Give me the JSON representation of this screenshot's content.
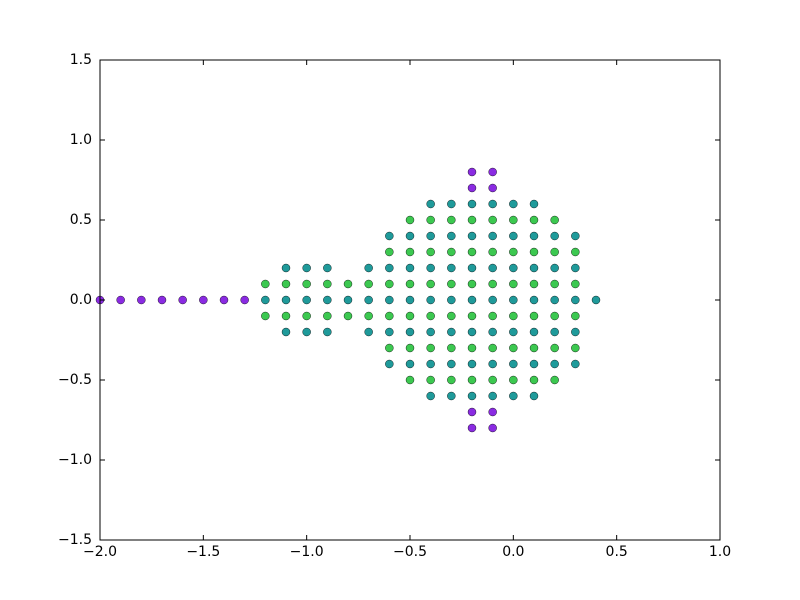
{
  "chart_data": {
    "type": "scatter",
    "xlim": [
      -2.0,
      1.0
    ],
    "ylim": [
      -1.5,
      1.5
    ],
    "xticks": [
      {
        "value": -2.0,
        "label": "−2.0"
      },
      {
        "value": -1.5,
        "label": "−1.5"
      },
      {
        "value": -1.0,
        "label": "−1.0"
      },
      {
        "value": -0.5,
        "label": "−0.5"
      },
      {
        "value": 0.0,
        "label": "0.0"
      },
      {
        "value": 0.5,
        "label": "0.5"
      },
      {
        "value": 1.0,
        "label": "1.0"
      }
    ],
    "yticks": [
      {
        "value": -1.5,
        "label": "−1.5"
      },
      {
        "value": -1.0,
        "label": "−1.0"
      },
      {
        "value": -0.5,
        "label": "−0.5"
      },
      {
        "value": 0.0,
        "label": "0.0"
      },
      {
        "value": 0.5,
        "label": "0.5"
      },
      {
        "value": 1.0,
        "label": "1.0"
      },
      {
        "value": 1.5,
        "label": "1.5"
      }
    ],
    "series": [
      {
        "color": "#1f9a9a",
        "x": [
          -0.7,
          -0.6,
          -0.5,
          -0.4,
          -0.3,
          -0.2,
          -0.1,
          0,
          0.1,
          0.2,
          0.3,
          0.4,
          -1.2,
          -1.1,
          -1.0,
          -0.9,
          -0.8,
          -0.7,
          -0.6,
          -0.5,
          -0.4,
          -0.3,
          -0.2,
          -0.1,
          0,
          0.1,
          0.2,
          0.3,
          -1.1,
          -1.0,
          -0.9,
          -0.7,
          -0.6,
          -0.5,
          -0.4,
          -0.3,
          -0.2,
          -0.1,
          0,
          0.1,
          0.2,
          0.3,
          -1.1,
          -1.0,
          -0.9,
          -0.6,
          -0.5,
          -0.4,
          -0.3,
          -0.2,
          -0.1,
          0,
          0.1,
          0.2,
          0.3,
          -0.6,
          -0.5,
          -0.4,
          -0.3,
          -0.2,
          -0.1,
          0,
          0.1,
          0.2,
          0.3,
          -0.4,
          -0.3,
          -0.2,
          -0.1,
          0,
          0.1,
          -0.4,
          -0.3,
          -0.2,
          -0.1,
          0,
          0.1
        ],
        "y": [
          0,
          0,
          0,
          0,
          0,
          0,
          0,
          0,
          0,
          0,
          0,
          0,
          0,
          0,
          0,
          0,
          0,
          0.2,
          0.2,
          0.2,
          0.2,
          0.2,
          0.2,
          0.2,
          0.2,
          0.2,
          0.2,
          0.2,
          0.2,
          0.2,
          0.2,
          -0.2,
          -0.2,
          -0.2,
          -0.2,
          -0.2,
          -0.2,
          -0.2,
          -0.2,
          -0.2,
          -0.2,
          -0.2,
          -0.2,
          -0.2,
          -0.2,
          0.4,
          0.4,
          0.4,
          0.4,
          0.4,
          0.4,
          0.4,
          0.4,
          0.4,
          0.4,
          -0.4,
          -0.4,
          -0.4,
          -0.4,
          -0.4,
          -0.4,
          -0.4,
          -0.4,
          -0.4,
          -0.4,
          0.6,
          0.6,
          0.6,
          0.6,
          0.6,
          0.6,
          -0.6,
          -0.6,
          -0.6,
          -0.6,
          -0.6,
          -0.6
        ]
      },
      {
        "color": "#3cc850",
        "x": [
          -0.7,
          -0.6,
          -0.5,
          -0.4,
          -0.3,
          -0.2,
          -0.1,
          0,
          0.1,
          0.2,
          0.3,
          -1.2,
          -1.1,
          -1.0,
          -0.9,
          -0.8,
          -0.7,
          -0.6,
          -0.5,
          -0.4,
          -0.3,
          -0.2,
          -0.1,
          0,
          0.1,
          0.2,
          0.3,
          -1.2,
          -1.1,
          -1.0,
          -0.9,
          -0.8,
          -0.6,
          -0.5,
          -0.4,
          -0.3,
          -0.2,
          -0.1,
          0,
          0.1,
          0.2,
          0.3,
          -0.6,
          -0.5,
          -0.4,
          -0.3,
          -0.2,
          -0.1,
          0,
          0.1,
          0.2,
          0.3,
          -0.5,
          -0.4,
          -0.3,
          -0.2,
          -0.1,
          0,
          0.1,
          0.2,
          -0.5,
          -0.4,
          -0.3,
          -0.2,
          -0.1,
          0,
          0.1,
          0.2
        ],
        "y": [
          0.1,
          0.1,
          0.1,
          0.1,
          0.1,
          0.1,
          0.1,
          0.1,
          0.1,
          0.1,
          0.1,
          0.1,
          0.1,
          0.1,
          0.1,
          0.1,
          -0.1,
          -0.1,
          -0.1,
          -0.1,
          -0.1,
          -0.1,
          -0.1,
          -0.1,
          -0.1,
          -0.1,
          -0.1,
          -0.1,
          -0.1,
          -0.1,
          -0.1,
          -0.1,
          0.3,
          0.3,
          0.3,
          0.3,
          0.3,
          0.3,
          0.3,
          0.3,
          0.3,
          0.3,
          -0.3,
          -0.3,
          -0.3,
          -0.3,
          -0.3,
          -0.3,
          -0.3,
          -0.3,
          -0.3,
          -0.3,
          0.5,
          0.5,
          0.5,
          0.5,
          0.5,
          0.5,
          0.5,
          0.5,
          -0.5,
          -0.5,
          -0.5,
          -0.5,
          -0.5,
          -0.5,
          -0.5,
          -0.5
        ]
      },
      {
        "color": "#8a2be2",
        "x": [
          -2.0,
          -1.9,
          -1.8,
          -1.7,
          -1.6,
          -1.5,
          -1.4,
          -1.3,
          -0.2,
          -0.1,
          -0.2,
          -0.1,
          -0.2,
          -0.1,
          -0.2,
          -0.1
        ],
        "y": [
          0,
          0,
          0,
          0,
          0,
          0,
          0,
          0,
          0.7,
          0.7,
          0.8,
          0.8,
          -0.7,
          -0.7,
          -0.8,
          -0.8
        ]
      }
    ]
  }
}
